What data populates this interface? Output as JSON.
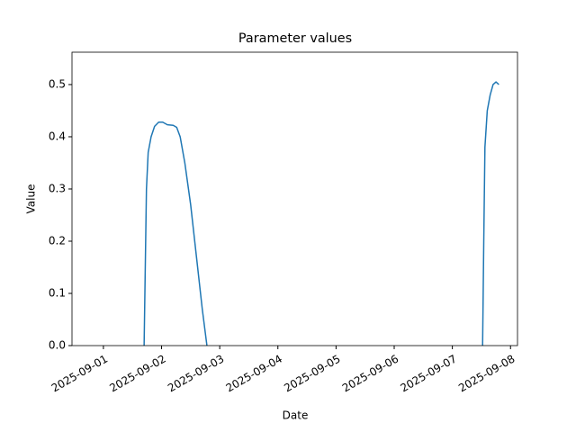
{
  "chart_data": {
    "type": "line",
    "title": "Parameter values",
    "x_label": "Date",
    "y_label": "Value",
    "x": [
      0.7,
      0.72,
      0.74,
      0.77,
      0.82,
      0.88,
      0.95,
      1.02,
      1.1,
      1.2,
      1.26,
      1.32,
      1.4,
      1.5,
      1.6,
      1.7,
      1.78,
      null,
      6.52,
      6.54,
      6.56,
      6.6,
      6.65,
      6.7,
      6.75,
      6.8
    ],
    "series": [
      {
        "name": "Value",
        "color": "#1f77b4",
        "values": [
          0,
          0.15,
          0.3,
          0.37,
          0.4,
          0.42,
          0.428,
          0.428,
          0.423,
          0.422,
          0.418,
          0.4,
          0.35,
          0.27,
          0.17,
          0.07,
          0,
          null,
          0,
          0.2,
          0.38,
          0.45,
          0.48,
          0.5,
          0.505,
          0.5
        ]
      }
    ],
    "xlim": [
      -0.54,
      7.12
    ],
    "xticks": [
      {
        "value": 0,
        "label": "2025-09-01"
      },
      {
        "value": 1,
        "label": "2025-09-02"
      },
      {
        "value": 2,
        "label": "2025-09-03"
      },
      {
        "value": 3,
        "label": "2025-09-04"
      },
      {
        "value": 4,
        "label": "2025-09-05"
      },
      {
        "value": 5,
        "label": "2025-09-06"
      },
      {
        "value": 6,
        "label": "2025-09-07"
      },
      {
        "value": 7,
        "label": "2025-09-08"
      }
    ],
    "ylim": [
      0,
      0.562
    ],
    "yticks": [
      {
        "value": 0,
        "label": "0.0"
      },
      0.1,
      0.2,
      0.3,
      0.4,
      0.5
    ],
    "grid": false
  }
}
